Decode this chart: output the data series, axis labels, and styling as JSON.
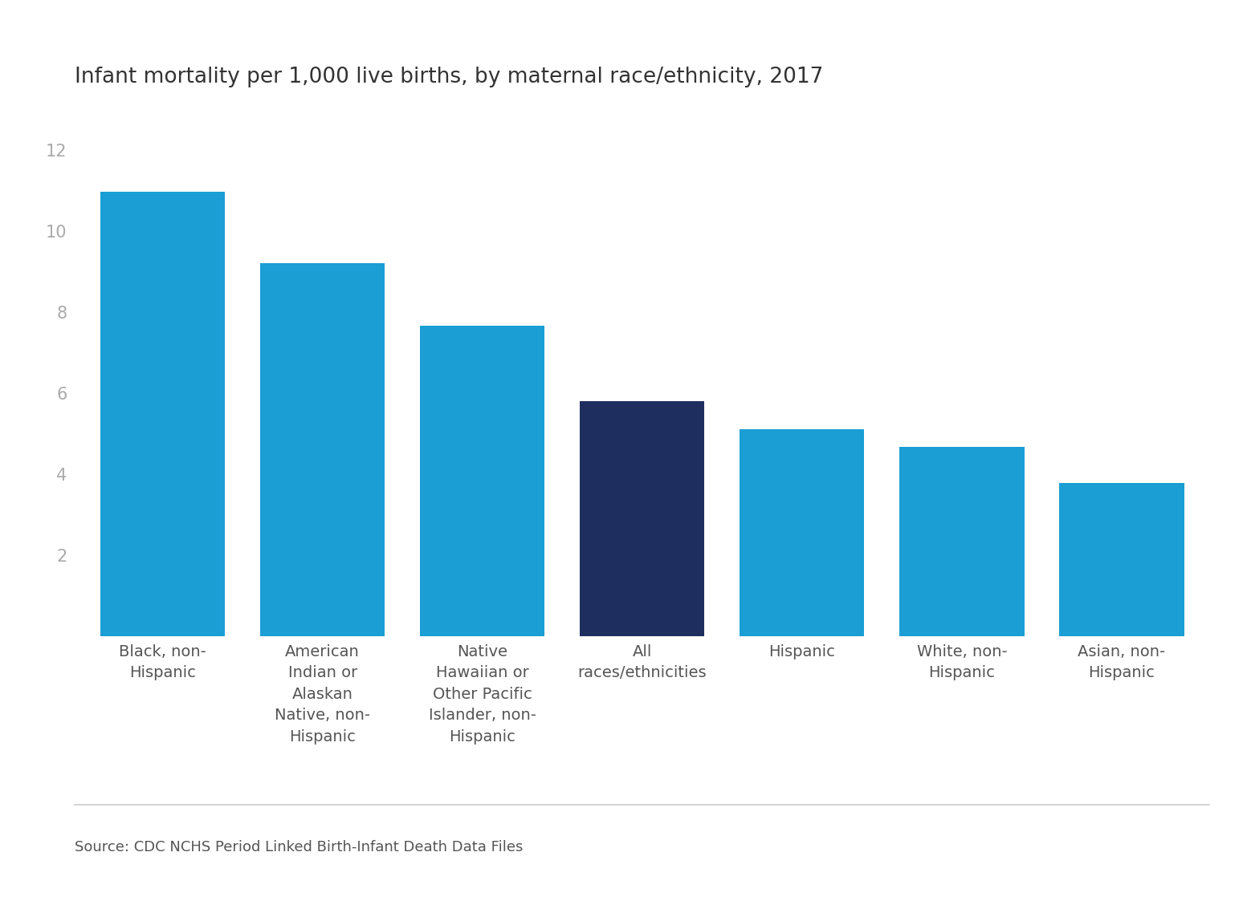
{
  "title": "Infant mortality per 1,000 live births, by maternal race/ethnicity, 2017",
  "categories": [
    "Black, non-\nHispanic",
    "American\nIndian or\nAlaskan\nNative, non-\nHispanic",
    "Native\nHawaiian or\nOther Pacific\nIslander, non-\nHispanic",
    "All\nraces/ethnicities",
    "Hispanic",
    "White, non-\nHispanic",
    "Asian, non-\nHispanic"
  ],
  "values": [
    10.97,
    9.21,
    7.65,
    5.79,
    5.1,
    4.67,
    3.78
  ],
  "bar_colors": [
    "#1a9ed4",
    "#1a9ed4",
    "#1a9ed4",
    "#1e2e5e",
    "#1a9ed4",
    "#1a9ed4",
    "#1a9ed4"
  ],
  "ylim": [
    0,
    13
  ],
  "yticks": [
    2,
    4,
    6,
    8,
    10,
    12
  ],
  "source_text": "Source: CDC NCHS Period Linked Birth-Infant Death Data Files",
  "title_fontsize": 19,
  "tick_label_fontsize": 14,
  "ytick_fontsize": 15,
  "source_fontsize": 13,
  "bar_width": 0.78,
  "title_color": "#333333",
  "xticklabel_color": "#555555",
  "ytick_color": "#aaaaaa",
  "source_color": "#555555",
  "background_color": "#ffffff",
  "spine_color": "#cccccc"
}
